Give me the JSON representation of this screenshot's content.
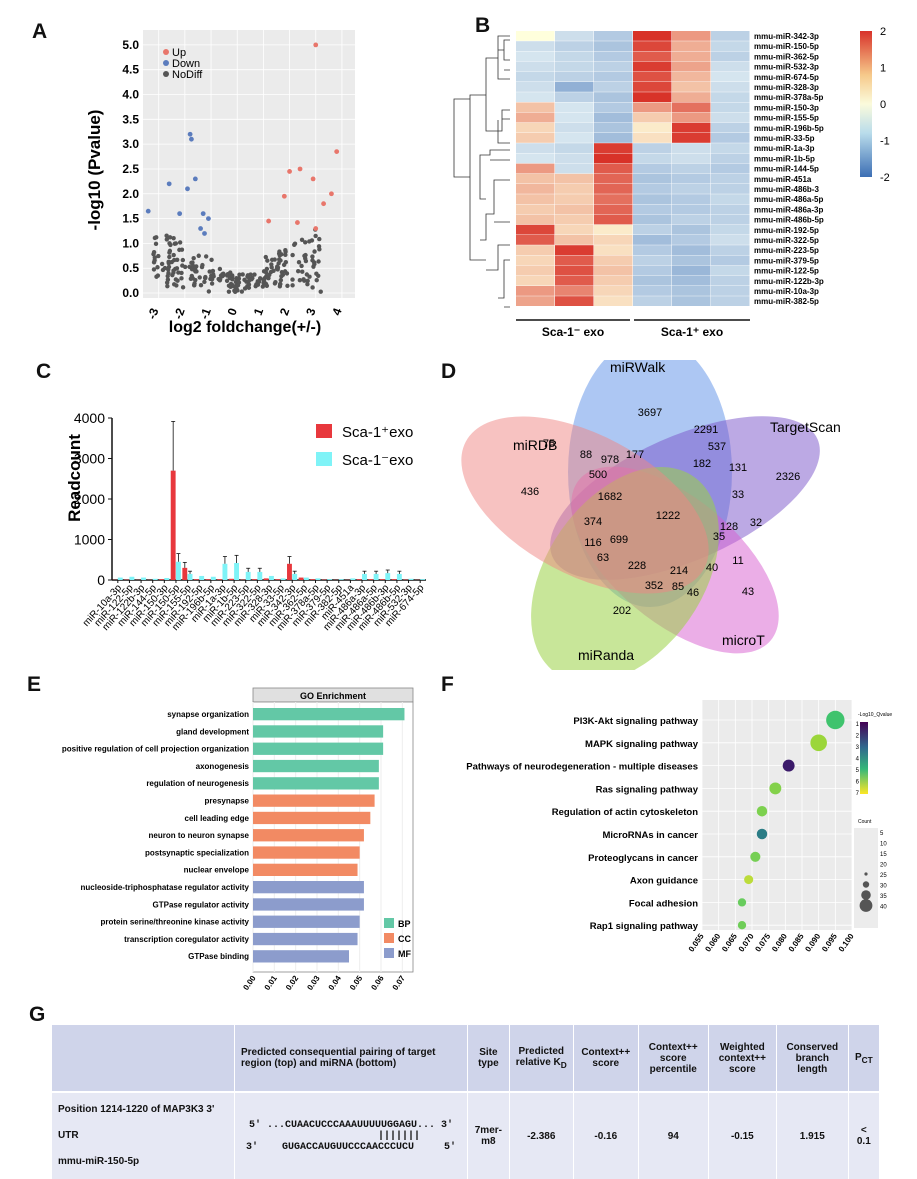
{
  "panels": {
    "a": "A",
    "b": "B",
    "c": "C",
    "d": "D",
    "e": "E",
    "f": "F",
    "g": "G"
  },
  "volcano": {
    "legend": [
      {
        "label": "Up",
        "color": "#e8766b"
      },
      {
        "label": "Down",
        "color": "#5b7cbd"
      },
      {
        "label": "NoDiff",
        "color": "#555555"
      }
    ],
    "xlabel": "log2 foldchange(+/-)",
    "ylabel": "-log10 (Pvalue)",
    "xticks": [
      "-3",
      "-2",
      "-1",
      "0",
      "1",
      "2",
      "3",
      "4"
    ],
    "yticks": [
      "0.0",
      "0.5",
      "1.0",
      "1.5",
      "2.0",
      "2.5",
      "3.0",
      "3.5",
      "4.0",
      "4.5",
      "5.0"
    ]
  },
  "heatmap": {
    "rows": [
      "mmu-miR-342-3p",
      "mmu-miR-150-5p",
      "mmu-miR-362-5p",
      "mmu-miR-532-3p",
      "mmu-miR-674-5p",
      "mmu-miR-328-3p",
      "mmu-miR-378a-5p",
      "mmu-miR-150-3p",
      "mmu-miR-155-5p",
      "mmu-miR-196b-5p",
      "mmu-miR-33-5p",
      "mmu-miR-1a-3p",
      "mmu-miR-1b-5p",
      "mmu-miR-144-5p",
      "mmu-miR-451a",
      "mmu-miR-486b-3",
      "mmu-miR-486a-5p",
      "mmu-miR-486a-3p",
      "mmu-miR-486b-5p",
      "mmu-miR-192-5p",
      "mmu-miR-322-5p",
      "mmu-miR-223-5p",
      "mmu-miR-379-5p",
      "mmu-miR-122-5p",
      "mmu-miR-122b-3p",
      "mmu-miR-10a-3p",
      "mmu-miR-382-5p"
    ],
    "groups": [
      "Sca-1⁻ exo",
      "Sca-1⁺ exo"
    ],
    "scale": [
      "2",
      "1",
      "0",
      "-1",
      "-2"
    ],
    "values": [
      [
        0.0,
        -0.3,
        -0.6,
        2.0,
        1.0,
        -0.5
      ],
      [
        -0.3,
        -0.5,
        -0.7,
        1.8,
        0.8,
        -0.4
      ],
      [
        -0.2,
        -0.4,
        -0.6,
        1.6,
        0.8,
        -0.5
      ],
      [
        -0.3,
        -0.4,
        -0.5,
        1.9,
        0.9,
        -0.3
      ],
      [
        -0.4,
        -0.5,
        -0.6,
        1.7,
        0.7,
        -0.2
      ],
      [
        -0.3,
        -1.0,
        -0.5,
        1.8,
        0.6,
        -0.3
      ],
      [
        -0.2,
        -0.5,
        -0.7,
        2.0,
        0.8,
        -0.4
      ],
      [
        0.6,
        -0.2,
        -0.6,
        1.0,
        1.4,
        -0.4
      ],
      [
        0.8,
        -0.2,
        -0.8,
        0.5,
        1.0,
        -0.3
      ],
      [
        0.4,
        -0.3,
        -0.7,
        0.2,
        1.9,
        -0.5
      ],
      [
        0.5,
        -0.2,
        -0.8,
        0.3,
        1.9,
        -0.6
      ],
      [
        -0.3,
        -0.4,
        1.9,
        -0.5,
        -0.3,
        -0.4
      ],
      [
        -0.2,
        -0.3,
        2.0,
        -0.4,
        -0.3,
        -0.5
      ],
      [
        1.0,
        -0.3,
        1.6,
        -0.6,
        -0.5,
        -0.6
      ],
      [
        0.6,
        0.6,
        1.5,
        -0.7,
        -0.6,
        -0.5
      ],
      [
        0.7,
        0.5,
        1.5,
        -0.6,
        -0.5,
        -0.5
      ],
      [
        0.6,
        0.5,
        1.4,
        -0.7,
        -0.6,
        -0.4
      ],
      [
        0.5,
        0.6,
        1.5,
        -0.6,
        -0.6,
        -0.5
      ],
      [
        0.6,
        0.5,
        1.6,
        -0.7,
        -0.5,
        -0.5
      ],
      [
        1.8,
        0.4,
        0.2,
        -0.5,
        -0.7,
        -0.4
      ],
      [
        1.6,
        0.6,
        0.4,
        -0.8,
        -0.6,
        -0.3
      ],
      [
        0.5,
        1.9,
        0.3,
        -0.6,
        -0.8,
        -0.5
      ],
      [
        0.4,
        1.6,
        0.5,
        -0.5,
        -0.7,
        -0.6
      ],
      [
        0.5,
        1.7,
        0.6,
        -0.6,
        -0.9,
        -0.4
      ],
      [
        0.4,
        1.6,
        0.5,
        -0.7,
        -0.8,
        -0.5
      ],
      [
        1.0,
        1.2,
        0.4,
        -0.6,
        -0.7,
        -0.5
      ],
      [
        0.9,
        1.7,
        0.3,
        -0.5,
        -0.7,
        -0.5
      ]
    ]
  },
  "chart_data": [
    {
      "type": "bar",
      "ylabel": "Readcount",
      "ylim": [
        0,
        4000
      ],
      "yticks": [
        "0",
        "1000",
        "2000",
        "3000",
        "4000"
      ],
      "categories": [
        "miR-10a-3p",
        "miR-122-5p",
        "miR-122b-3p",
        "miR-144-5p",
        "miR-150-3p",
        "miR-150-5p",
        "miR-155-5p",
        "miR-192-5p",
        "miR-196b-5p",
        "miR-1a-3p",
        "miR-1b-5p",
        "miR-223-5p",
        "miR-322-5p",
        "miR-328-3p",
        "miR-33-5p",
        "miR-342-3p",
        "miR-362-5p",
        "miR-378a-5p",
        "miR-379-5p",
        "miR-382-5p",
        "miR-451a",
        "miR-486a-3p",
        "miR-486a-5p",
        "miR-486b-3p",
        "miR-486b-5p",
        "miR-532-3p",
        "miR-674-5p"
      ],
      "series": [
        {
          "name": "Sca-1⁺exo",
          "color": "#e8383d",
          "values": [
            5,
            10,
            5,
            5,
            20,
            2700,
            300,
            20,
            20,
            20,
            30,
            10,
            20,
            40,
            20,
            400,
            60,
            20,
            10,
            5,
            5,
            20,
            20,
            20,
            20,
            10,
            5
          ]
        },
        {
          "name": "Sca-1⁻exo",
          "color": "#7ff3f7",
          "values": [
            60,
            80,
            60,
            30,
            50,
            450,
            150,
            100,
            80,
            400,
            420,
            200,
            200,
            100,
            40,
            150,
            60,
            40,
            20,
            20,
            40,
            150,
            150,
            170,
            150,
            30,
            20
          ]
        }
      ]
    },
    {
      "type": "bar",
      "title": "GO Enrichment",
      "categories": [
        "synapse organization",
        "gland development",
        "positive regulation of cell projection organization",
        "axonogenesis",
        "regulation of neurogenesis",
        "presynapse",
        "cell leading edge",
        "neuron to neuron synapse",
        "postsynaptic specialization",
        "nuclear envelope",
        "nucleoside-triphosphatase regulator activity",
        "GTPase regulator activity",
        "protein serine/threonine kinase activity",
        "transcription coregulator activity",
        "GTPase binding"
      ],
      "values": [
        0.071,
        0.061,
        0.061,
        0.059,
        0.059,
        0.057,
        0.055,
        0.052,
        0.05,
        0.049,
        0.052,
        0.052,
        0.05,
        0.049,
        0.045
      ],
      "groups": [
        "BP",
        "BP",
        "BP",
        "BP",
        "BP",
        "CC",
        "CC",
        "CC",
        "CC",
        "CC",
        "MF",
        "MF",
        "MF",
        "MF",
        "MF"
      ],
      "legend": [
        {
          "label": "BP",
          "color": "#63c8a6"
        },
        {
          "label": "CC",
          "color": "#f28a63"
        },
        {
          "label": "MF",
          "color": "#8c9ccc"
        }
      ],
      "xticks": [
        "0.00",
        "0.01",
        "0.02",
        "0.03",
        "0.04",
        "0.05",
        "0.06",
        "0.07"
      ],
      "xlim": [
        0,
        0.075
      ]
    },
    {
      "type": "scatter",
      "categories": [
        "PI3K-Akt signaling pathway",
        "MAPK signaling pathway",
        "Pathways of neurodegeneration - multiple diseases",
        "Ras signaling pathway",
        "Regulation of actin cytoskeleton",
        "MicroRNAs in cancer",
        "Proteoglycans in cancer",
        "Axon guidance",
        "Focal adhesion",
        "Rap1 signaling pathway"
      ],
      "x": [
        0.095,
        0.09,
        0.081,
        0.077,
        0.073,
        0.073,
        0.071,
        0.069,
        0.067,
        0.067
      ],
      "color": [
        "#3fc36d",
        "#9bd63a",
        "#3b1a6a",
        "#83d14a",
        "#7dd14f",
        "#2b7d86",
        "#76cf54",
        "#bcdc3a",
        "#68cc5d",
        "#6ecd57"
      ],
      "count": [
        40,
        35,
        22,
        22,
        18,
        18,
        17,
        14,
        12,
        12
      ],
      "xticks": [
        "0.055",
        "0.060",
        "0.065",
        "0.070",
        "0.075",
        "0.080",
        "0.085",
        "0.090",
        "0.095",
        "0.100"
      ],
      "xlim": [
        0.055,
        0.1
      ],
      "colorbar_title": "-Log10_Qvalue",
      "colorbar_ticks": [
        "1",
        "2",
        "3",
        "4",
        "5",
        "6",
        "7"
      ],
      "size_title": "Count",
      "size_ticks": [
        "5",
        "10",
        "15",
        "20",
        "25",
        "30",
        "35",
        "40"
      ]
    }
  ],
  "venn": {
    "sets": [
      "miRWalk",
      "TargetScan",
      "microT",
      "miRanda",
      "miRDB"
    ],
    "numbers": [
      "3697",
      "2326",
      "43",
      "202",
      "436",
      "75",
      "2291",
      "978",
      "537",
      "88",
      "177",
      "182",
      "131",
      "500",
      "33",
      "1682",
      "1222",
      "32",
      "128",
      "374",
      "35",
      "116",
      "699",
      "63",
      "11",
      "228",
      "214",
      "40",
      "352",
      "85",
      "46"
    ]
  },
  "table": {
    "headers": [
      "",
      "Predicted consequential pairing of target region (top) and miRNA (bottom)",
      "Site type",
      "Predicted relative K",
      "Context++ score",
      "Context++ score percentile",
      "Weighted context++ score",
      "Conserved branch length",
      "P"
    ],
    "kd_sub": "D",
    "pct_sub": "CT",
    "row_label1": "Position 1214-1220 of MAP3K3 3' UTR",
    "row_label2": "mmu-miR-150-5p",
    "seq_top": "5' ...CUAACUCCCAAAUUUUUGGAGU... 3'",
    "seq_mid": "                |||||||",
    "seq_bot": "3'    GUGACCAUGUUCCCAACCCUCU     5'",
    "cells": [
      "7mer-m8",
      "-2.386",
      "-0.16",
      "94",
      "-0.15",
      "1.915",
      "< 0.1"
    ]
  }
}
